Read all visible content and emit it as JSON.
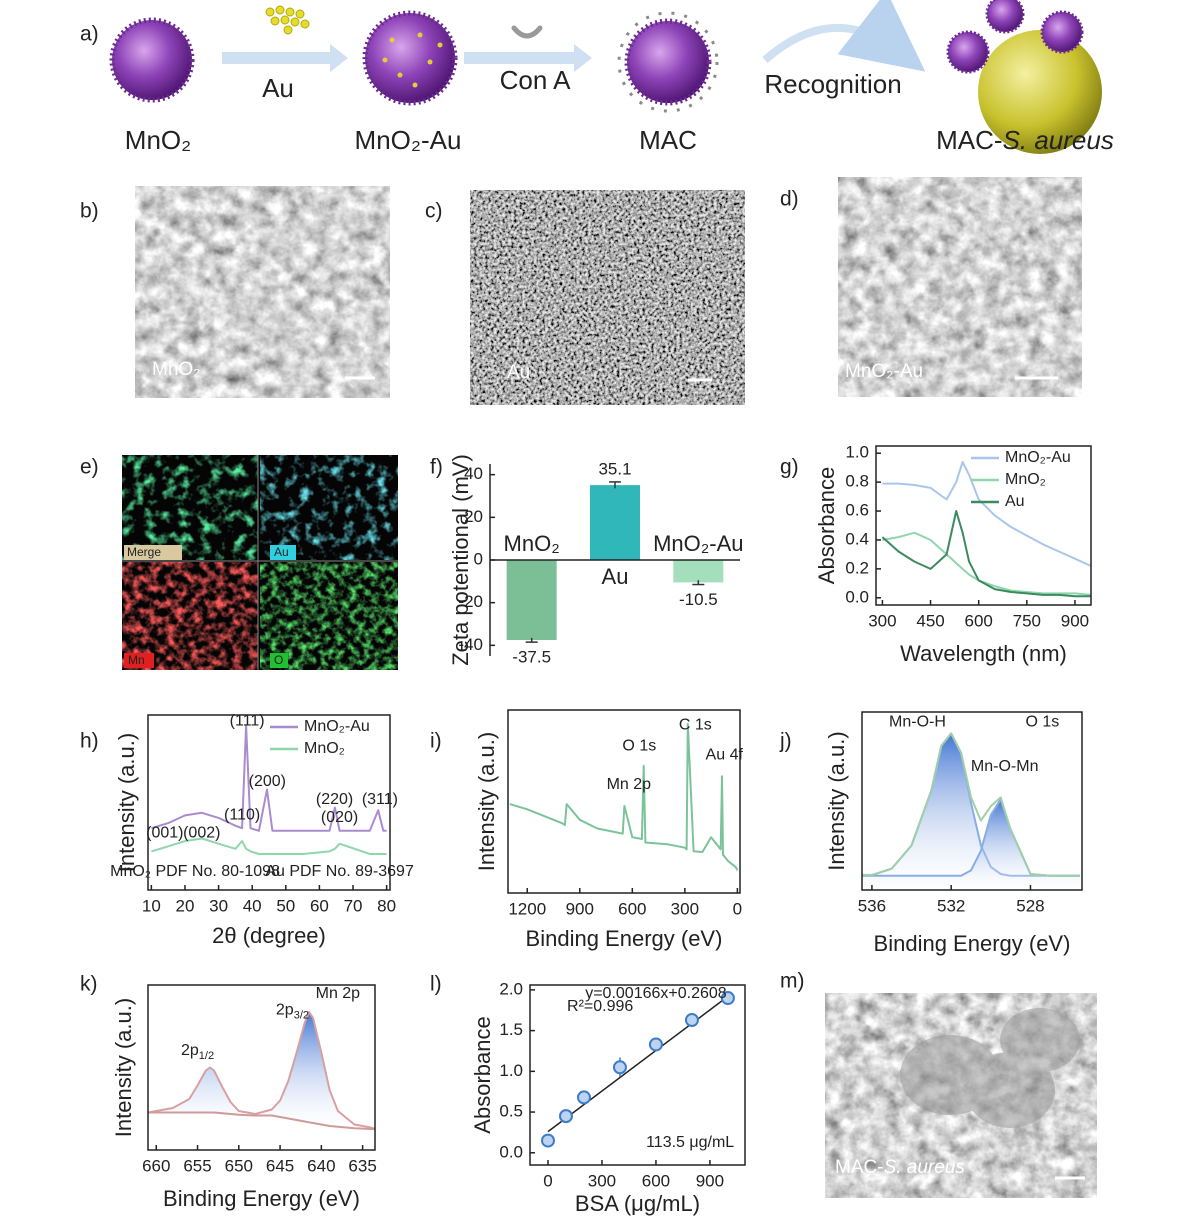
{
  "figure": {
    "a": {
      "panel": "a)",
      "materials": [
        "MnO₂",
        "MnO₂-Au",
        "MAC"
      ],
      "target": {
        "prefix": "MAC-",
        "italic": "S. aureus"
      },
      "steps": [
        "Au",
        "Con A",
        "Recognition"
      ]
    },
    "b": {
      "panel": "b)",
      "label": "MnO₂"
    },
    "c": {
      "panel": "c)",
      "label": "Au"
    },
    "d": {
      "panel": "d)",
      "label": "MnO₂-Au"
    },
    "e": {
      "panel": "e)",
      "tiles": [
        "Merge",
        "Au",
        "Mn",
        "O"
      ]
    },
    "m": {
      "panel": "m)",
      "label": {
        "prefix": "MAC-",
        "italic": "S. aureus"
      }
    }
  },
  "chart_data": [
    {
      "type": "bar",
      "panel": "f)",
      "ylabel": "Zeta potentional (mV)",
      "categories": [
        "MnO₂",
        "Au",
        "MnO₂-Au"
      ],
      "values": [
        -37.5,
        35.1,
        -10.5
      ],
      "errors": [
        1,
        1.5,
        1
      ],
      "colors": [
        "#7cbf97",
        "#2fb7b9",
        "#a3dfbd"
      ],
      "ylim": [
        -45,
        45
      ],
      "yticks": [
        -40,
        -20,
        0,
        20,
        40
      ],
      "frame": "left",
      "zero_line": true
    },
    {
      "type": "line",
      "panel": "g)",
      "xlabel": "Wavelength (nm)",
      "ylabel": "Absorbance",
      "x": [
        300,
        350,
        400,
        450,
        500,
        530,
        550,
        570,
        600,
        650,
        700,
        750,
        800,
        850,
        900,
        950
      ],
      "series": [
        {
          "name": "MnO₂-Au",
          "color": "#a9c6ea",
          "values": [
            0.79,
            0.79,
            0.78,
            0.76,
            0.68,
            0.8,
            0.94,
            0.85,
            0.68,
            0.57,
            0.49,
            0.43,
            0.37,
            0.32,
            0.27,
            0.22
          ]
        },
        {
          "name": "MnO₂",
          "color": "#8fd6ad",
          "values": [
            0.4,
            0.42,
            0.45,
            0.4,
            0.3,
            0.24,
            0.2,
            0.16,
            0.12,
            0.08,
            0.05,
            0.04,
            0.03,
            0.03,
            0.03,
            0.02
          ]
        },
        {
          "name": "Au",
          "color": "#3c8a5e",
          "values": [
            0.42,
            0.32,
            0.25,
            0.2,
            0.3,
            0.6,
            0.45,
            0.25,
            0.12,
            0.06,
            0.04,
            0.03,
            0.02,
            0.02,
            0.01,
            0.01
          ]
        }
      ],
      "xlim": [
        280,
        950
      ],
      "xticks": [
        300,
        450,
        600,
        750,
        900
      ],
      "ylim": [
        -0.05,
        1.05
      ],
      "yticks": [
        {
          "value": 0,
          "label": "0.0"
        },
        {
          "value": 0.2,
          "label": "0.2"
        },
        {
          "value": 0.4,
          "label": "0.4"
        },
        {
          "value": 0.6,
          "label": "0.6"
        },
        {
          "value": 0.8,
          "label": "0.8"
        },
        {
          "value": 1.0,
          "label": "1.0"
        }
      ],
      "frame": "box",
      "legend": "upper right"
    },
    {
      "type": "line",
      "panel": "h)",
      "xlabel": "2θ (degree)",
      "ylabel": "Intensity (a.u.)",
      "x": [
        10,
        15,
        20,
        25,
        30,
        35,
        37,
        38.2,
        39.5,
        42,
        44.4,
        46,
        55,
        63,
        64.6,
        66,
        75,
        77.5,
        79,
        80
      ],
      "series": [
        {
          "name": "MnO₂-Au",
          "color": "#a98bd0",
          "values": [
            6.0,
            6.2,
            6.5,
            6.6,
            6.4,
            6.1,
            6.0,
            10.0,
            6.0,
            5.9,
            7.5,
            5.9,
            5.9,
            5.9,
            6.8,
            5.9,
            5.9,
            6.7,
            5.9,
            5.9
          ]
        },
        {
          "name": "MnO₂",
          "color": "#8fd6ad",
          "values": [
            5.1,
            5.3,
            5.5,
            5.6,
            5.4,
            5.2,
            5.5,
            5.2,
            5.1,
            5.0,
            5.0,
            5.0,
            5.0,
            5.1,
            5.2,
            5.4,
            5.0,
            5.0,
            5.0,
            5.0
          ]
        }
      ],
      "annotations": [
        {
          "text": "(111)",
          "x": 38.5,
          "y": 10.15
        },
        {
          "text": "(200)",
          "x": 44.5,
          "y": 7.8
        },
        {
          "text": "(220)",
          "x": 64.5,
          "y": 7.1
        },
        {
          "text": "(311)",
          "x": 78,
          "y": 7.1
        },
        {
          "text": "(001)",
          "x": 14,
          "y": 5.8
        },
        {
          "text": "(002)",
          "x": 25,
          "y": 5.8
        },
        {
          "text": "(110)",
          "x": 37,
          "y": 6.5
        },
        {
          "text": "(020)",
          "x": 66,
          "y": 6.4
        },
        {
          "text": "MnO₂ PDF No. 80-1098",
          "x": 23,
          "y": 4.3
        },
        {
          "text": "Au PDF No. 89-3697",
          "x": 66,
          "y": 4.3
        }
      ],
      "xlim": [
        9,
        81
      ],
      "xticks": [
        10,
        20,
        30,
        40,
        50,
        60,
        70,
        80
      ],
      "ylim": [
        3.6,
        10.4
      ],
      "frame": "box",
      "legend": "upper right"
    },
    {
      "type": "line",
      "panel": "i)",
      "xlabel": "Binding Energy (eV)",
      "ylabel": "Intensity (a.u.)",
      "x": [
        1300,
        1200,
        1100,
        1000,
        985,
        975,
        900,
        800,
        700,
        655,
        645,
        600,
        545,
        535,
        525,
        400,
        300,
        290,
        283,
        250,
        200,
        150,
        95,
        88,
        82,
        50,
        10,
        0
      ],
      "series": [
        {
          "color": "#7cc39a",
          "values": [
            5.1,
            4.8,
            4.4,
            4.0,
            3.9,
            5.1,
            4.2,
            3.7,
            3.5,
            3.4,
            5.0,
            3.2,
            3.1,
            7.3,
            2.9,
            2.8,
            2.6,
            2.5,
            9.7,
            2.4,
            2.35,
            3.2,
            2.5,
            6.7,
            2.2,
            1.8,
            1.5,
            1.3
          ]
        }
      ],
      "annotations": [
        {
          "text": "Mn 2p",
          "x": 620,
          "y": 6.2
        },
        {
          "text": "O 1s",
          "x": 560,
          "y": 8.4
        },
        {
          "text": "C 1s",
          "x": 240,
          "y": 9.6
        },
        {
          "text": "Au 4f",
          "x": 75,
          "y": 7.9
        }
      ],
      "xlim": [
        1310,
        -15
      ],
      "xticks": [
        1200,
        900,
        600,
        300,
        0
      ],
      "ylim": [
        0,
        10.5
      ],
      "frame": "box"
    },
    {
      "type": "line",
      "panel": "j)",
      "xlabel": "Binding Energy (eV)",
      "ylabel": "Intensity (a.u.)",
      "x": [
        536.5,
        536,
        535,
        534,
        533,
        532.5,
        532,
        531.5,
        531,
        530.5,
        530,
        529.5,
        529,
        528,
        527,
        526,
        525.5
      ],
      "series": [
        {
          "color": "#88aee0",
          "fill": true,
          "values": [
            0.3,
            0.33,
            0.7,
            2.0,
            5.1,
            7.6,
            8.3,
            7.2,
            4.4,
            2.0,
            0.8,
            0.4,
            0.3,
            0.3,
            0.3,
            0.3,
            0.3
          ]
        },
        {
          "color": "#88aee0",
          "fill": true,
          "values": [
            0.3,
            0.3,
            0.3,
            0.3,
            0.3,
            0.3,
            0.3,
            0.3,
            0.6,
            1.7,
            3.7,
            4.6,
            2.9,
            0.4,
            0.3,
            0.3,
            0.3
          ]
        },
        {
          "color": "#9fcfa6",
          "values": [
            0.35,
            0.35,
            0.7,
            2.0,
            5.1,
            7.6,
            8.3,
            7.2,
            4.7,
            3.4,
            4.2,
            4.7,
            2.9,
            0.4,
            0.3,
            0.3,
            0.3
          ]
        }
      ],
      "annotations": [
        {
          "text": "Mn-O-H",
          "x": 533.7,
          "y": 8.9
        },
        {
          "text": "Mn-O-Mn",
          "x": 529.3,
          "y": 6.4
        },
        {
          "text": "O 1s",
          "x": 527.4,
          "y": 8.9
        }
      ],
      "xlim": [
        536.5,
        525.4
      ],
      "xticks": [
        536,
        532,
        528
      ],
      "ylim": [
        -0.5,
        9.5
      ],
      "frame": "box"
    },
    {
      "type": "line",
      "panel": "k)",
      "xlabel": "Binding Energy (eV)",
      "ylabel": "Intensity (a.u.)",
      "x": [
        661,
        660,
        658,
        656,
        655,
        654,
        653.5,
        653,
        652,
        651,
        650,
        648,
        646,
        645,
        644,
        643,
        642,
        641.5,
        641,
        640,
        639,
        638,
        636,
        634,
        633.5
      ],
      "series": [
        {
          "color": "#d9a0a0",
          "fill_to": 1,
          "values": [
            2.5,
            2.6,
            2.8,
            3.4,
            4.3,
            5.3,
            5.5,
            5.3,
            4.2,
            3.2,
            2.6,
            2.4,
            2.7,
            3.3,
            4.6,
            6.5,
            8.5,
            9.2,
            8.8,
            6.5,
            4.0,
            2.6,
            1.7,
            1.5,
            1.4
          ]
        },
        {
          "color": "#cf9a9a",
          "values": [
            2.5,
            2.5,
            2.5,
            2.5,
            2.5,
            2.5,
            2.5,
            2.5,
            2.45,
            2.4,
            2.35,
            2.3,
            2.3,
            2.2,
            2.1,
            2.0,
            1.9,
            1.85,
            1.8,
            1.7,
            1.6,
            1.55,
            1.45,
            1.4,
            1.4
          ]
        }
      ],
      "annotations": [
        {
          "text": "2p",
          "sub": "1/2",
          "x": 655,
          "y": 6.6
        },
        {
          "text": "2p",
          "sub": "3/2",
          "x": 643.5,
          "y": 9.3
        },
        {
          "text": "Mn 2p",
          "x": 638,
          "y": 10.4
        }
      ],
      "xlim": [
        661,
        633.5
      ],
      "xticks": [
        660,
        655,
        650,
        645,
        640,
        635
      ],
      "ylim": [
        0,
        11
      ],
      "frame": "box"
    },
    {
      "type": "scatter",
      "panel": "l)",
      "xlabel": "BSA (μg/mL)",
      "ylabel": "Absorbance",
      "x": [
        0,
        100,
        200,
        400,
        600,
        800,
        1000
      ],
      "values": [
        0.15,
        0.45,
        0.68,
        1.05,
        1.33,
        1.63,
        1.9
      ],
      "errors": [
        0.03,
        0.03,
        0.03,
        0.12,
        0.04,
        0.03,
        0.03
      ],
      "color": "#3d7cc9",
      "fit": {
        "x": [
          0,
          1000
        ],
        "values": [
          0.26,
          1.92
        ]
      },
      "annotations": [
        {
          "text": "y=0.00166x+0.2608",
          "x": 600,
          "y": 1.95
        },
        {
          "text": "R²=0.996",
          "x": 290,
          "y": 1.79
        },
        {
          "text": "113.5 μg/mL",
          "x": 790,
          "y": 0.12
        }
      ],
      "xlim": [
        -100,
        1095
      ],
      "xticks": [
        0,
        300,
        600,
        900
      ],
      "ylim": [
        -0.15,
        2.06
      ],
      "yticks": [
        {
          "value": 0,
          "label": "0.0"
        },
        {
          "value": 0.5,
          "label": "0.5"
        },
        {
          "value": 1.0,
          "label": "1.0"
        },
        {
          "value": 1.5,
          "label": "1.5"
        },
        {
          "value": 2.0,
          "label": "2.0"
        }
      ],
      "frame": "box"
    }
  ]
}
